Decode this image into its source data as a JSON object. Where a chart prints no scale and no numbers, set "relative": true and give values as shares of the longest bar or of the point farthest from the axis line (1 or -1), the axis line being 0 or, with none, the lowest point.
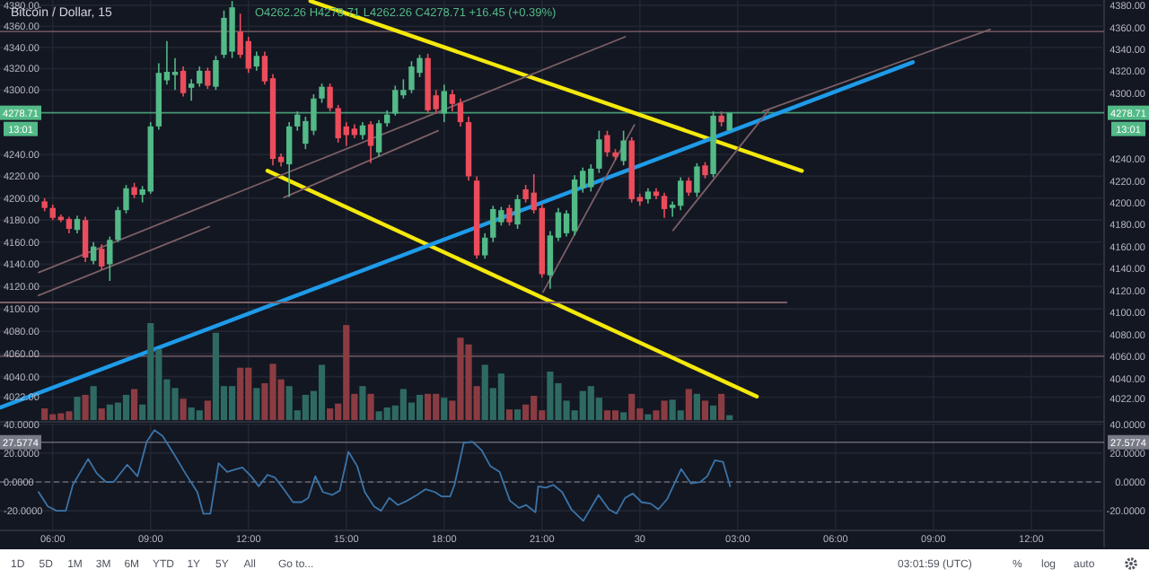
{
  "chart_data": [
    {
      "type": "candlestick",
      "title": "Bitcoin / Dollar, 15",
      "subtitle": "O4262.26 H4278.71 L4262.26 C4278.71 +16.45 (+0.39%)",
      "x": [
        "--09-29T05:45",
        "--09-29T06:00",
        "--09-29T06:15",
        "--09-29T06:30",
        "--09-29T06:45",
        "--09-29T07:00",
        "--09-29T07:15",
        "--09-29T07:30",
        "--09-29T07:45",
        "--09-29T08:00",
        "--09-29T08:15",
        "--09-29T08:30",
        "--09-29T08:45",
        "--09-29T09:00",
        "--09-29T09:15",
        "--09-29T09:30",
        "--09-29T09:45",
        "--09-29T10:00",
        "--09-29T10:15",
        "--09-29T10:30",
        "--09-29T10:45",
        "--09-29T11:00",
        "--09-29T11:15",
        "--09-29T11:30",
        "--09-29T11:45",
        "--09-29T12:00",
        "--09-29T12:15",
        "--09-29T12:30",
        "--09-29T12:45",
        "--09-29T13:00",
        "--09-29T13:15",
        "--09-29T13:30",
        "--09-29T13:45",
        "--09-29T14:00",
        "--09-29T14:15",
        "--09-29T14:30",
        "--09-29T14:45",
        "--09-29T15:00",
        "--09-29T15:15",
        "--09-29T15:30",
        "--09-29T15:45",
        "--09-29T16:00",
        "--09-29T16:15",
        "--09-29T16:30",
        "--09-29T16:45",
        "--09-29T17:00",
        "--09-29T17:15",
        "--09-29T17:30",
        "--09-29T17:45",
        "--09-29T18:00",
        "--09-29T18:15",
        "--09-29T18:30",
        "--09-29T18:45",
        "--09-29T19:00",
        "--09-29T19:15",
        "--09-29T19:30",
        "--09-29T19:45",
        "--09-29T20:00",
        "--09-29T20:15",
        "--09-29T20:30",
        "--09-29T20:45",
        "--09-29T21:00",
        "--09-29T21:15",
        "--09-29T21:30",
        "--09-29T21:45",
        "--09-29T22:00",
        "--09-29T22:15",
        "--09-29T22:30",
        "--09-29T22:45",
        "--09-29T23:00",
        "--09-29T23:15",
        "--09-29T23:30",
        "--09-29T23:45",
        "--09-30T00:00",
        "--09-30T00:15",
        "--09-30T00:30",
        "--09-30T00:45",
        "--09-30T01:00",
        "--09-30T01:15",
        "--09-30T01:30",
        "--09-30T01:45",
        "--09-30T02:00",
        "--09-30T02:15",
        "--09-30T02:30",
        "--09-30T02:45"
      ],
      "ohlc": [
        [
          4197,
          4200,
          4188,
          4191
        ],
        [
          4191,
          4194,
          4180,
          4182
        ],
        [
          4183,
          4185,
          4178,
          4180
        ],
        [
          4181,
          4183,
          4168,
          4172
        ],
        [
          4171,
          4184,
          4168,
          4181
        ],
        [
          4180,
          4183,
          4142,
          4146
        ],
        [
          4143,
          4160,
          4140,
          4156
        ],
        [
          4154,
          4158,
          4135,
          4138
        ],
        [
          4140,
          4165,
          4125,
          4162
        ],
        [
          4162,
          4192,
          4160,
          4189
        ],
        [
          4189,
          4212,
          4186,
          4209
        ],
        [
          4210,
          4214,
          4200,
          4203
        ],
        [
          4203,
          4211,
          4196,
          4208
        ],
        [
          4206,
          4270,
          4204,
          4266
        ],
        [
          4266,
          4325,
          4263,
          4316
        ],
        [
          4309,
          4346,
          4305,
          4317
        ],
        [
          4314,
          4330,
          4300,
          4317
        ],
        [
          4318,
          4322,
          4294,
          4297
        ],
        [
          4302,
          4310,
          4290,
          4306
        ],
        [
          4306,
          4322,
          4303,
          4318
        ],
        [
          4318,
          4321,
          4301,
          4304
        ],
        [
          4303,
          4332,
          4300,
          4328
        ],
        [
          4333,
          4375,
          4330,
          4368
        ],
        [
          4336,
          4384,
          4330,
          4378
        ],
        [
          4355,
          4372,
          4330,
          4333
        ],
        [
          4346,
          4350,
          4316,
          4320
        ],
        [
          4322,
          4336,
          4318,
          4332
        ],
        [
          4332,
          4336,
          4305,
          4308
        ],
        [
          4311,
          4315,
          4230,
          4236
        ],
        [
          4238,
          4241,
          4229,
          4233
        ],
        [
          4231,
          4270,
          4201,
          4266
        ],
        [
          4266,
          4280,
          4262,
          4277
        ],
        [
          4250,
          4275,
          4245,
          4271
        ],
        [
          4262,
          4296,
          4258,
          4292
        ],
        [
          4292,
          4306,
          4288,
          4303
        ],
        [
          4303,
          4306,
          4280,
          4283
        ],
        [
          4283,
          4286,
          4251,
          4255
        ],
        [
          4266,
          4270,
          4248,
          4258
        ],
        [
          4264,
          4268,
          4255,
          4258
        ],
        [
          4258,
          4270,
          4254,
          4267
        ],
        [
          4268,
          4271,
          4232,
          4248
        ],
        [
          4242,
          4272,
          4238,
          4269
        ],
        [
          4269,
          4281,
          4266,
          4277
        ],
        [
          4278,
          4304,
          4276,
          4300
        ],
        [
          4295,
          4310,
          4292,
          4300
        ],
        [
          4300,
          4327,
          4297,
          4322
        ],
        [
          4316,
          4333,
          4312,
          4330
        ],
        [
          4330,
          4334,
          4278,
          4281
        ],
        [
          4295,
          4300,
          4278,
          4282
        ],
        [
          4278,
          4305,
          4270,
          4299
        ],
        [
          4296,
          4300,
          4280,
          4287
        ],
        [
          4288,
          4292,
          4266,
          4270
        ],
        [
          4270,
          4275,
          4216,
          4220
        ],
        [
          4216,
          4220,
          4145,
          4148
        ],
        [
          4148,
          4168,
          4145,
          4164
        ],
        [
          4164,
          4193,
          4160,
          4190
        ],
        [
          4178,
          4192,
          4175,
          4189
        ],
        [
          4191,
          4194,
          4175,
          4178
        ],
        [
          4176,
          4203,
          4172,
          4199
        ],
        [
          4208,
          4212,
          4196,
          4199
        ],
        [
          4205,
          4222,
          4186,
          4189
        ],
        [
          4191,
          4195,
          4128,
          4131
        ],
        [
          4130,
          4170,
          4118,
          4166
        ],
        [
          4164,
          4191,
          4161,
          4187
        ],
        [
          4168,
          4189,
          4165,
          4186
        ],
        [
          4170,
          4221,
          4166,
          4217
        ],
        [
          4209,
          4228,
          4205,
          4225
        ],
        [
          4210,
          4231,
          4206,
          4227
        ],
        [
          4227,
          4262,
          4223,
          4254
        ],
        [
          4258,
          4262,
          4238,
          4242
        ],
        [
          4242,
          4245,
          4235,
          4238
        ],
        [
          4234,
          4262,
          4230,
          4253
        ],
        [
          4253,
          4256,
          4196,
          4199
        ],
        [
          4201,
          4204,
          4193,
          4197
        ],
        [
          4199,
          4209,
          4195,
          4206
        ],
        [
          4206,
          4209,
          4199,
          4202
        ],
        [
          4202,
          4205,
          4182,
          4190
        ],
        [
          4191,
          4197,
          4183,
          4194
        ],
        [
          4193,
          4219,
          4189,
          4216
        ],
        [
          4216,
          4219,
          4202,
          4205
        ],
        [
          4205,
          4232,
          4201,
          4229
        ],
        [
          4230,
          4233,
          4218,
          4221
        ],
        [
          4222,
          4280,
          4219,
          4276
        ],
        [
          4276,
          4280,
          4266,
          4270
        ],
        [
          4262.26,
          4278.71,
          4262.26,
          4278.71
        ]
      ],
      "colors": [
        "#eb4d5c",
        "#eb4d5c",
        "#eb4d5c",
        "#eb4d5c",
        "#53b987",
        "#eb4d5c",
        "#53b987",
        "#eb4d5c",
        "#53b987",
        "#53b987",
        "#53b987",
        "#eb4d5c",
        "#53b987",
        "#53b987",
        "#53b987",
        "#53b987",
        "#53b987",
        "#eb4d5c",
        "#53b987",
        "#53b987",
        "#eb4d5c",
        "#53b987",
        "#53b987",
        "#53b987",
        "#eb4d5c",
        "#eb4d5c",
        "#53b987",
        "#eb4d5c",
        "#eb4d5c",
        "#eb4d5c",
        "#53b987",
        "#53b987",
        "#53b987",
        "#53b987",
        "#53b987",
        "#eb4d5c",
        "#eb4d5c",
        "#eb4d5c",
        "#eb4d5c",
        "#53b987",
        "#eb4d5c",
        "#53b987",
        "#53b987",
        "#53b987",
        "#53b987",
        "#53b987",
        "#53b987",
        "#eb4d5c",
        "#eb4d5c",
        "#53b987",
        "#eb4d5c",
        "#eb4d5c",
        "#eb4d5c",
        "#eb4d5c",
        "#53b987",
        "#53b987",
        "#53b987",
        "#eb4d5c",
        "#53b987",
        "#eb4d5c",
        "#eb4d5c",
        "#eb4d5c",
        "#53b987",
        "#53b987",
        "#53b987",
        "#53b987",
        "#53b987",
        "#53b987",
        "#53b987",
        "#eb4d5c",
        "#eb4d5c",
        "#53b987",
        "#eb4d5c",
        "#eb4d5c",
        "#53b987",
        "#eb4d5c",
        "#eb4d5c",
        "#53b987",
        "#53b987",
        "#eb4d5c",
        "#53b987",
        "#eb4d5c",
        "#53b987",
        "#eb4d5c",
        "#53b987"
      ],
      "series": [
        {
          "type": "line",
          "color": "#f5e90b",
          "x": [
            "--09-29T13:54",
            "--09-30T04:58"
          ],
          "values": [
            4384,
            4225
          ]
        },
        {
          "type": "line",
          "color": "#f5e90b",
          "x": [
            "--09-29T12:35",
            "--09-30T03:35"
          ],
          "values": [
            4225,
            4022.5
          ]
        },
        {
          "type": "line",
          "color": "#1e9be9",
          "x": [
            "--09-29T04:24",
            "--09-30T08:22"
          ],
          "values": [
            4013,
            4326
          ]
        },
        {
          "type": "line",
          "color": "#7b5f66",
          "x": [
            "--09-29T05:34",
            "--09-29T23:33"
          ],
          "values": [
            4132.5,
            4350
          ]
        },
        {
          "type": "line",
          "color": "#7b5f66",
          "x": [
            "--09-29T05:34",
            "--09-29T10:48"
          ],
          "values": [
            4112,
            4174
          ]
        },
        {
          "type": "line",
          "color": "#7b5f66",
          "x": [
            "--09-29T13:05",
            "--09-29T17:49"
          ],
          "values": [
            4200.5,
            4262
          ]
        },
        {
          "type": "line",
          "color": "#7b5f66",
          "x": [
            "--09-30T03:46",
            "--09-30T10:44"
          ],
          "values": [
            4280,
            4357
          ]
        },
        {
          "type": "line",
          "color": "#7b5f66",
          "x": [
            "--09-29T21:02",
            "--09-29T23:50"
          ],
          "values": [
            4115,
            4267.5
          ]
        },
        {
          "type": "line",
          "color": "#7b5f66",
          "x": [
            "--09-30T01:01",
            "--09-30T03:57"
          ],
          "values": [
            4170.6,
            4281
          ]
        },
        {
          "type": "line",
          "color": "#7b5f66",
          "x": [
            "--09-29T04:23",
            "--09-30T04:30"
          ],
          "values": [
            4105.7,
            4105.7
          ]
        }
      ],
      "xlim": [
        "--09-29T04:23",
        "--09-30T14:14"
      ],
      "xticks": [
        {
          "value": "--09-29T06:00",
          "label": null
        },
        {
          "value": "--09-29T09:00",
          "label": null
        },
        {
          "value": "--09-29T12:00",
          "label": null
        },
        {
          "value": "--09-29T15:00",
          "label": null
        },
        {
          "value": "--09-29T18:00",
          "label": null
        },
        {
          "value": "--09-29T21:00",
          "label": null
        },
        {
          "value": "--09-30T00:00",
          "label": null
        },
        {
          "value": "--09-30T03:00",
          "label": null
        },
        {
          "value": "--09-30T06:00",
          "label": null
        },
        {
          "value": "--09-30T09:00",
          "label": null
        },
        {
          "value": "--09-30T12:00",
          "label": null
        }
      ],
      "ylim": [
        4002,
        4385
      ],
      "yticks": [
        {
          "value": 4022,
          "label": "4022.00"
        },
        {
          "value": 4040,
          "label": "4040.00"
        },
        {
          "value": 4060,
          "label": "4060.00"
        },
        {
          "value": 4080,
          "label": "4080.00"
        },
        {
          "value": 4100,
          "label": "4100.00"
        },
        {
          "value": 4120,
          "label": "4120.00"
        },
        {
          "value": 4140,
          "label": "4140.00"
        },
        {
          "value": 4160,
          "label": "4160.00"
        },
        {
          "value": 4180,
          "label": "4180.00"
        },
        {
          "value": 4200,
          "label": "4200.00"
        },
        {
          "value": 4220,
          "label": "4220.00"
        },
        {
          "value": 4240,
          "label": "4240.00"
        },
        {
          "value": 4300,
          "label": "4300.00"
        },
        {
          "value": 4320,
          "label": "4320.00"
        },
        {
          "value": 4340,
          "label": "4340.00"
        },
        {
          "value": 4360,
          "label": "4360.00"
        },
        {
          "value": 4380,
          "label": "4380.00"
        }
      ],
      "y2lim": [
        4002,
        4385
      ],
      "y2ticks": [
        {
          "value": 4022,
          "label": "4022.00"
        },
        {
          "value": 4040,
          "label": "4040.00"
        },
        {
          "value": 4060,
          "label": "4060.00"
        },
        {
          "value": 4080,
          "label": "4080.00"
        },
        {
          "value": 4100,
          "label": "4100.00"
        },
        {
          "value": 4120,
          "label": "4120.00"
        },
        {
          "value": 4140,
          "label": "4140.00"
        },
        {
          "value": 4160,
          "label": "4160.00"
        },
        {
          "value": 4180,
          "label": "4180.00"
        },
        {
          "value": 4200,
          "label": "4200.00"
        },
        {
          "value": 4220,
          "label": "4220.00"
        },
        {
          "value": 4240,
          "label": "4240.00"
        },
        {
          "value": 4300,
          "label": "4300.00"
        },
        {
          "value": 4320,
          "label": "4320.00"
        },
        {
          "value": 4340,
          "label": "4340.00"
        },
        {
          "value": 4360,
          "label": "4360.00"
        },
        {
          "value": 4380,
          "label": "4380.00"
        }
      ],
      "log": true,
      "grid": true,
      "tick_labels": "y",
      "ref_lines": [
        {
          "axis": "y",
          "value": 4355,
          "color": "#7b5f66"
        },
        {
          "axis": "y",
          "value": 4058,
          "color": "#7b5f66"
        },
        {
          "axis": "y",
          "value": 4278.71,
          "label": "4278.71",
          "color": "#53b987"
        }
      ],
      "annotations": [
        "13:01"
      ]
    },
    {
      "type": "bar",
      "relative": true,
      "tick_labels": false,
      "x": [
        "--09-29T05:45",
        "--09-29T06:00",
        "--09-29T06:15",
        "--09-29T06:30",
        "--09-29T06:45",
        "--09-29T07:00",
        "--09-29T07:15",
        "--09-29T07:30",
        "--09-29T07:45",
        "--09-29T08:00",
        "--09-29T08:15",
        "--09-29T08:30",
        "--09-29T08:45",
        "--09-29T09:00",
        "--09-29T09:15",
        "--09-29T09:30",
        "--09-29T09:45",
        "--09-29T10:00",
        "--09-29T10:15",
        "--09-29T10:30",
        "--09-29T10:45",
        "--09-29T11:00",
        "--09-29T11:15",
        "--09-29T11:30",
        "--09-29T11:45",
        "--09-29T12:00",
        "--09-29T12:15",
        "--09-29T12:30",
        "--09-29T12:45",
        "--09-29T13:00",
        "--09-29T13:15",
        "--09-29T13:30",
        "--09-29T13:45",
        "--09-29T14:00",
        "--09-29T14:15",
        "--09-29T14:30",
        "--09-29T14:45",
        "--09-29T15:00",
        "--09-29T15:15",
        "--09-29T15:30",
        "--09-29T15:45",
        "--09-29T16:00",
        "--09-29T16:15",
        "--09-29T16:30",
        "--09-29T16:45",
        "--09-29T17:00",
        "--09-29T17:15",
        "--09-29T17:30",
        "--09-29T17:45",
        "--09-29T18:00",
        "--09-29T18:15",
        "--09-29T18:30",
        "--09-29T18:45",
        "--09-29T19:00",
        "--09-29T19:15",
        "--09-29T19:30",
        "--09-29T19:45",
        "--09-29T20:00",
        "--09-29T20:15",
        "--09-29T20:30",
        "--09-29T20:45",
        "--09-29T21:00",
        "--09-29T21:15",
        "--09-29T21:30",
        "--09-29T21:45",
        "--09-29T22:00",
        "--09-29T22:15",
        "--09-29T22:30",
        "--09-29T22:45",
        "--09-29T23:00",
        "--09-29T23:15",
        "--09-29T23:30",
        "--09-29T23:45",
        "--09-30T00:00",
        "--09-30T00:15",
        "--09-30T00:30",
        "--09-30T00:45",
        "--09-30T01:00",
        "--09-30T01:15",
        "--09-30T01:30",
        "--09-30T01:45",
        "--09-30T02:00",
        "--09-30T02:15",
        "--09-30T02:30",
        "--09-30T02:45"
      ],
      "values": [
        0.12,
        0.06,
        0.07,
        0.09,
        0.24,
        0.26,
        0.35,
        0.12,
        0.16,
        0.18,
        0.26,
        0.32,
        0.16,
        1.0,
        0.73,
        0.42,
        0.33,
        0.22,
        0.13,
        0.1,
        0.2,
        0.9,
        0.35,
        0.35,
        0.54,
        0.54,
        0.33,
        0.38,
        0.58,
        0.42,
        0.35,
        0.1,
        0.26,
        0.3,
        0.57,
        0.12,
        0.17,
        0.98,
        0.27,
        0.35,
        0.27,
        0.09,
        0.13,
        0.15,
        0.32,
        0.18,
        0.26,
        0.27,
        0.27,
        0.23,
        0.2,
        0.85,
        0.78,
        0.35,
        0.57,
        0.33,
        0.48,
        0.11,
        0.11,
        0.16,
        0.25,
        0.1,
        0.5,
        0.38,
        0.2,
        0.1,
        0.3,
        0.35,
        0.23,
        0.1,
        0.1,
        0.08,
        0.27,
        0.12,
        0.06,
        0.1,
        0.2,
        0.21,
        0.1,
        0.32,
        0.27,
        0.2,
        0.15,
        0.27,
        0.05
      ],
      "colors": [
        "#8b3c42",
        "#8b3c42",
        "#8b3c42",
        "#8b3c42",
        "#2e6a62",
        "#8b3c42",
        "#2e6a62",
        "#8b3c42",
        "#2e6a62",
        "#2e6a62",
        "#2e6a62",
        "#8b3c42",
        "#2e6a62",
        "#2e6a62",
        "#2e6a62",
        "#2e6a62",
        "#2e6a62",
        "#8b3c42",
        "#2e6a62",
        "#2e6a62",
        "#8b3c42",
        "#2e6a62",
        "#2e6a62",
        "#2e6a62",
        "#8b3c42",
        "#8b3c42",
        "#2e6a62",
        "#8b3c42",
        "#8b3c42",
        "#8b3c42",
        "#2e6a62",
        "#2e6a62",
        "#2e6a62",
        "#2e6a62",
        "#2e6a62",
        "#8b3c42",
        "#8b3c42",
        "#8b3c42",
        "#8b3c42",
        "#2e6a62",
        "#8b3c42",
        "#2e6a62",
        "#2e6a62",
        "#2e6a62",
        "#2e6a62",
        "#2e6a62",
        "#2e6a62",
        "#8b3c42",
        "#8b3c42",
        "#2e6a62",
        "#8b3c42",
        "#8b3c42",
        "#8b3c42",
        "#8b3c42",
        "#2e6a62",
        "#2e6a62",
        "#2e6a62",
        "#8b3c42",
        "#2e6a62",
        "#8b3c42",
        "#8b3c42",
        "#8b3c42",
        "#2e6a62",
        "#2e6a62",
        "#2e6a62",
        "#2e6a62",
        "#2e6a62",
        "#2e6a62",
        "#2e6a62",
        "#8b3c42",
        "#8b3c42",
        "#2e6a62",
        "#8b3c42",
        "#8b3c42",
        "#2e6a62",
        "#8b3c42",
        "#8b3c42",
        "#2e6a62",
        "#2e6a62",
        "#8b3c42",
        "#2e6a62",
        "#8b3c42",
        "#2e6a62",
        "#8b3c42",
        "#2e6a62"
      ],
      "xlim": [
        "--09-29T04:23",
        "--09-30T14:14"
      ]
    },
    {
      "type": "line",
      "series": [
        {
          "color": "#3b74a8",
          "x": [
            "--09-29T05:34",
            "--09-29T05:51",
            "--09-29T06:07",
            "--09-29T06:24",
            "--09-29T06:37",
            "--09-29T07:05",
            "--09-29T07:21",
            "--09-29T07:38",
            "--09-29T07:52",
            "--09-29T08:17",
            "--09-29T08:36",
            "--09-29T08:53",
            "--09-29T09:07",
            "--09-29T09:22",
            "--09-29T09:42",
            "--09-29T10:04",
            "--09-29T10:26",
            "--09-29T10:37",
            "--09-29T10:50",
            "--09-29T11:05",
            "--09-29T11:21",
            "--09-29T11:38",
            "--09-29T11:49",
            "--09-29T12:05",
            "--09-29T12:19",
            "--09-29T12:35",
            "--09-29T12:49",
            "--09-29T13:05",
            "--09-29T13:22",
            "--09-29T13:38",
            "--09-29T13:50",
            "--09-29T14:03",
            "--09-29T14:17",
            "--09-29T14:34",
            "--09-29T14:48",
            "--09-29T15:04",
            "--09-29T15:20",
            "--09-29T15:34",
            "--09-29T15:51",
            "--09-29T16:04",
            "--09-29T16:19",
            "--09-29T16:35",
            "--09-29T16:52",
            "--09-29T17:10",
            "--09-29T17:26",
            "--09-29T17:43",
            "--09-29T17:55",
            "--09-29T18:11",
            "--09-29T18:19",
            "--09-29T18:36",
            "--09-29T18:52",
            "--09-29T19:09",
            "--09-29T19:25",
            "--09-29T19:42",
            "--09-29T20:01",
            "--09-29T20:18",
            "--09-29T20:31",
            "--09-29T20:48",
            "--09-29T20:53",
            "--09-29T21:07",
            "--09-29T21:21",
            "--09-29T21:37",
            "--09-29T21:54",
            "--09-29T22:16",
            "--09-29T22:44",
            "--09-29T23:03",
            "--09-29T23:17",
            "--09-29T23:33",
            "--09-29T23:47",
            "--09-30T00:03",
            "--09-30T00:20",
            "--09-30T00:34",
            "--09-30T00:50",
            "--09-30T01:16",
            "--09-30T01:34",
            "--09-30T01:51",
            "--09-30T02:04",
            "--09-30T02:18",
            "--09-30T02:33",
            "--09-30T02:46"
          ],
          "values": [
            -7,
            -17,
            -20,
            -20,
            -2,
            16,
            6,
            0,
            0,
            12,
            4,
            28,
            36,
            32,
            20,
            6,
            -7,
            -22,
            -22,
            13,
            7,
            9,
            10,
            4,
            -3,
            5,
            3,
            -5,
            -14,
            -14,
            -11,
            4,
            -7,
            -9,
            -6,
            21,
            11,
            -7,
            -17,
            -20,
            -11,
            -16,
            -13,
            -9,
            -5,
            -7,
            -10,
            -10,
            -2,
            27,
            28,
            22,
            11,
            7,
            -13,
            -18,
            -16,
            -21,
            -3,
            -4,
            -2,
            -7,
            -19,
            -27,
            -9,
            -19,
            -22,
            -11,
            -8,
            -14,
            -15,
            -19,
            -12,
            9,
            -1,
            0,
            4,
            15,
            14,
            -3
          ]
        }
      ],
      "xlim": [
        "--09-29T04:23",
        "--09-30T14:14"
      ],
      "xticks": [
        {
          "value": "--09-29T06:00",
          "label": "06:00"
        },
        {
          "value": "--09-29T09:00",
          "label": "09:00"
        },
        {
          "value": "--09-29T12:00",
          "label": "12:00"
        },
        {
          "value": "--09-29T15:00",
          "label": "15:00"
        },
        {
          "value": "--09-29T18:00",
          "label": "18:00"
        },
        {
          "value": "--09-29T21:00",
          "label": "21:00"
        },
        {
          "value": "--09-30T00:00",
          "label": "30"
        },
        {
          "value": "--09-30T03:00",
          "label": "03:00"
        },
        {
          "value": "--09-30T06:00",
          "label": "06:00"
        },
        {
          "value": "--09-30T09:00",
          "label": "09:00"
        },
        {
          "value": "--09-30T12:00",
          "label": "12:00"
        }
      ],
      "ylim": [
        -33,
        40.5
      ],
      "yticks": [
        {
          "value": -20,
          "label": "-20.0000"
        },
        {
          "value": 0,
          "label": "0.0000"
        },
        {
          "value": 20,
          "label": "20.0000"
        },
        {
          "value": 40,
          "label": "40.0000"
        }
      ],
      "y2lim": [
        -33,
        40.5
      ],
      "y2ticks": [
        {
          "value": -20,
          "label": "-20.0000"
        },
        {
          "value": 0,
          "label": "0.0000"
        },
        {
          "value": 20,
          "label": "20.0000"
        },
        {
          "value": 40,
          "label": "40.0000"
        }
      ],
      "grid": true,
      "ref_lines": [
        {
          "axis": "y",
          "value": 0,
          "line_style": "dashed",
          "color": "#787b86"
        },
        {
          "axis": "y",
          "value": 27.5774,
          "label": "27.5774",
          "color": "#787b86"
        }
      ],
      "annotations": [
        "1D",
        "5D",
        "1M",
        "3M",
        "6M",
        "YTD",
        "1Y",
        "5Y",
        "All",
        "Go to...",
        "03:01:59 (UTC)",
        "%",
        "log",
        "auto"
      ]
    }
  ]
}
